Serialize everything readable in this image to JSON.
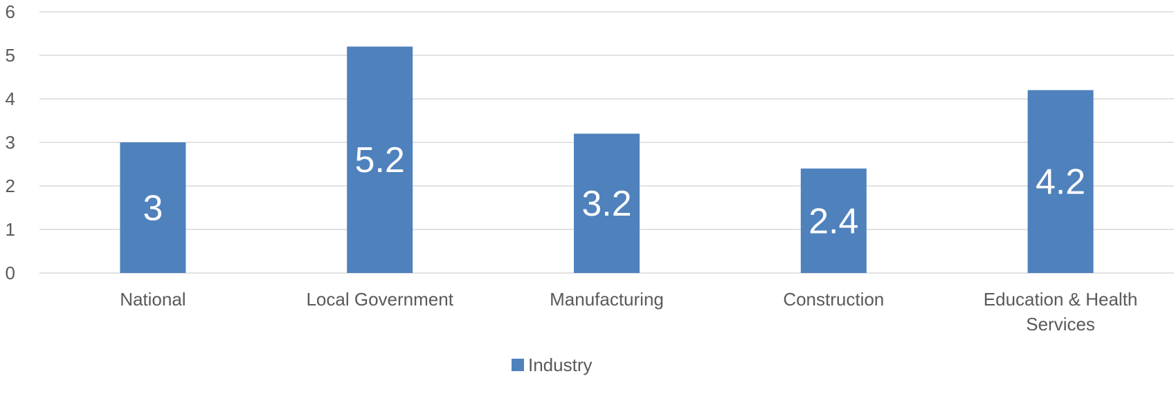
{
  "chart_data": {
    "type": "bar",
    "title": "",
    "xlabel": "",
    "ylabel": "",
    "categories": [
      "National",
      "Local Government",
      "Manufacturing",
      "Construction",
      "Education & Health Services"
    ],
    "category_lines": [
      [
        "National"
      ],
      [
        "Local Government"
      ],
      [
        "Manufacturing"
      ],
      [
        "Construction"
      ],
      [
        "Education & Health",
        "Services"
      ]
    ],
    "series": [
      {
        "name": "Industry",
        "values": [
          3,
          5.2,
          3.2,
          2.4,
          4.2
        ],
        "data_labels": [
          "3",
          "5.2",
          "3.2",
          "2.4",
          "4.2"
        ],
        "color": "#4f81bd"
      }
    ],
    "ylim": [
      0,
      6
    ],
    "yticks": [
      "0",
      "1",
      "2",
      "3",
      "4",
      "5",
      "6"
    ],
    "grid": true,
    "legend_position": "bottom"
  }
}
